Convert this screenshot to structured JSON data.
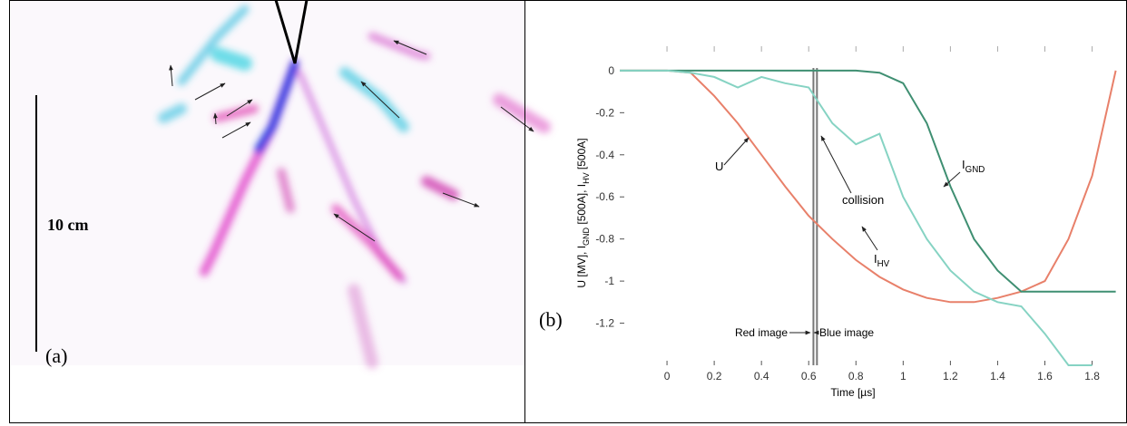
{
  "panel_a": {
    "scale_label": "10 cm",
    "panel_label": "(a)"
  },
  "chart_data": {
    "type": "line",
    "panel_label": "(b)",
    "x_label": "Time [µs]",
    "y_label": [
      "U [MV], I",
      "GND",
      " [500A], I",
      "HV",
      " [500A]"
    ],
    "x": [
      -0.2,
      -0.1,
      0,
      0.1,
      0.2,
      0.3,
      0.4,
      0.5,
      0.6,
      0.7,
      0.8,
      0.9,
      1.0,
      1.1,
      1.2,
      1.3,
      1.4,
      1.5,
      1.6,
      1.7,
      1.8,
      1.9
    ],
    "series": [
      {
        "name": "U",
        "color": "#e8806a",
        "values": [
          0,
          0,
          0,
          -0.01,
          -0.12,
          -0.25,
          -0.4,
          -0.55,
          -0.69,
          -0.8,
          -0.9,
          -0.98,
          -1.04,
          -1.08,
          -1.1,
          -1.1,
          -1.08,
          -1.05,
          -1.0,
          -0.8,
          -0.5,
          0.0
        ]
      },
      {
        "name": "IGND",
        "color": "#3f8f72",
        "values": [
          0,
          0,
          0,
          0,
          0,
          0,
          0,
          0,
          0,
          0,
          0,
          -0.01,
          -0.06,
          -0.25,
          -0.55,
          -0.8,
          -0.95,
          -1.05,
          -1.05,
          -1.05,
          -1.05,
          -1.05
        ]
      },
      {
        "name": "IHV",
        "color": "#86d3c3",
        "values": [
          0,
          0,
          0,
          -0.01,
          -0.03,
          -0.08,
          -0.03,
          -0.06,
          -0.08,
          -0.25,
          -0.35,
          -0.3,
          -0.6,
          -0.8,
          -0.95,
          -1.05,
          -1.1,
          -1.12,
          -1.25,
          -1.4,
          -1.4,
          null
        ]
      }
    ],
    "event_lines": [
      0.62,
      0.635
    ],
    "xlim": [
      -0.2,
      1.94
    ],
    "ylim": [
      -1.4,
      0.09
    ],
    "xticks": [
      0,
      0.2,
      0.4,
      0.6,
      0.8,
      1,
      1.2,
      1.4,
      1.6,
      1.8
    ],
    "yticks": [
      0,
      -0.2,
      -0.4,
      -0.6,
      -0.8,
      -1,
      -1.2
    ],
    "annotations": [
      {
        "text": [
          "U"
        ]
      },
      {
        "text": [
          "I",
          "GND"
        ]
      },
      {
        "text": [
          "collision"
        ]
      },
      {
        "text": [
          "I",
          "HV"
        ]
      },
      {
        "text": [
          "Red image"
        ]
      },
      {
        "text": [
          "Blue image"
        ]
      }
    ]
  }
}
